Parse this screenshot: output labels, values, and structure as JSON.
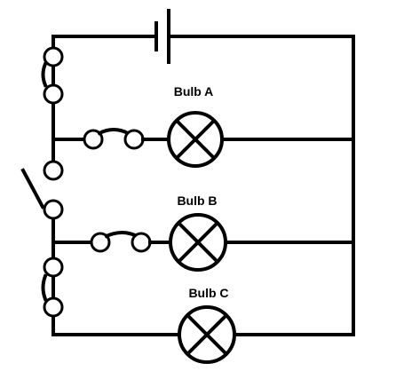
{
  "diagram": {
    "bulbs": [
      {
        "id": "a",
        "label": "Bulb A"
      },
      {
        "id": "b",
        "label": "Bulb B"
      },
      {
        "id": "c",
        "label": "Bulb C"
      }
    ]
  }
}
